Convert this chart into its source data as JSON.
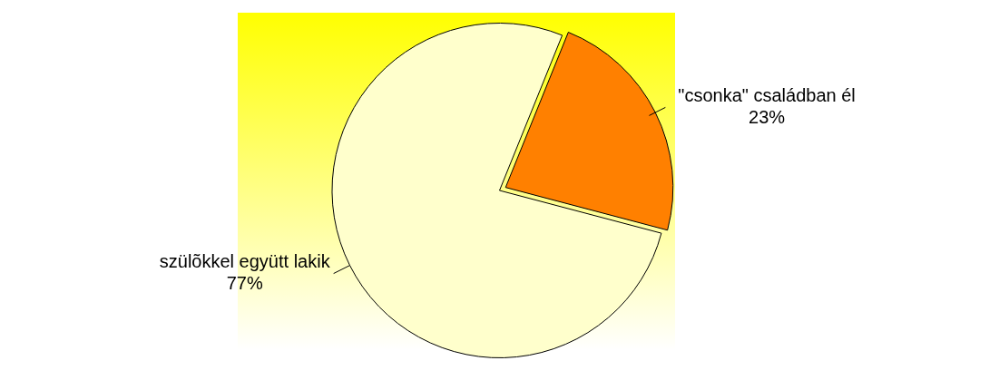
{
  "chart_data": {
    "type": "pie",
    "categories": [
      "\"csonka\" családban él",
      "szülõkkel együtt lakik"
    ],
    "values": [
      23,
      77
    ],
    "colors": [
      "#ff8000",
      "#ffffcc"
    ],
    "value_labels": [
      "23%",
      "77%"
    ],
    "legend": false
  }
}
